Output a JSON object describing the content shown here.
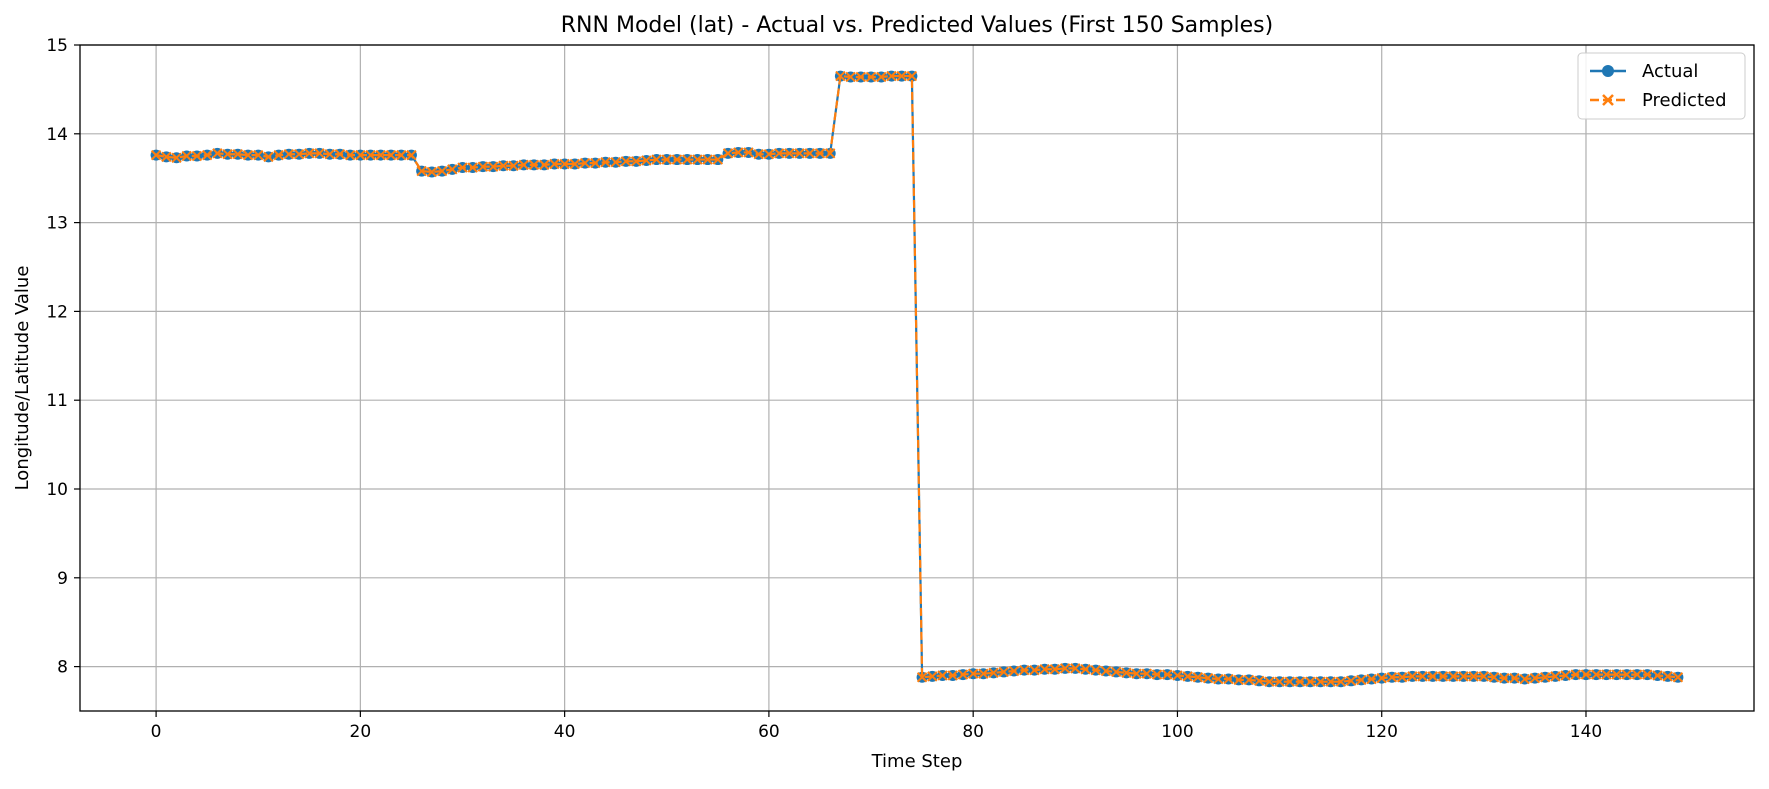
{
  "chart_data": {
    "type": "line",
    "title": "RNN Model (lat) - Actual vs. Predicted Values (First 150 Samples)",
    "xlabel": "Time Step",
    "ylabel": "Longitude/Latitude Value",
    "xlim": [
      -7.45,
      156.45
    ],
    "ylim": [
      7.5,
      15
    ],
    "xticks": [
      0,
      20,
      40,
      60,
      80,
      100,
      120,
      140
    ],
    "xtick_labels": [
      "0",
      "20",
      "40",
      "60",
      "80",
      "100",
      "120",
      "140"
    ],
    "yticks": [
      8,
      9,
      10,
      11,
      12,
      13,
      14,
      15
    ],
    "ytick_labels": [
      "8",
      "9",
      "10",
      "11",
      "12",
      "13",
      "14",
      "15"
    ],
    "grid": true,
    "legend_position": "top-right",
    "x": [
      0,
      1,
      2,
      3,
      4,
      5,
      6,
      7,
      8,
      9,
      10,
      11,
      12,
      13,
      14,
      15,
      16,
      17,
      18,
      19,
      20,
      21,
      22,
      23,
      24,
      25,
      26,
      27,
      28,
      29,
      30,
      31,
      32,
      33,
      34,
      35,
      36,
      37,
      38,
      39,
      40,
      41,
      42,
      43,
      44,
      45,
      46,
      47,
      48,
      49,
      50,
      51,
      52,
      53,
      54,
      55,
      56,
      57,
      58,
      59,
      60,
      61,
      62,
      63,
      64,
      65,
      66,
      67,
      68,
      69,
      70,
      71,
      72,
      73,
      74,
      75,
      76,
      77,
      78,
      79,
      80,
      81,
      82,
      83,
      84,
      85,
      86,
      87,
      88,
      89,
      90,
      91,
      92,
      93,
      94,
      95,
      96,
      97,
      98,
      99,
      100,
      101,
      102,
      103,
      104,
      105,
      106,
      107,
      108,
      109,
      110,
      111,
      112,
      113,
      114,
      115,
      116,
      117,
      118,
      119,
      120,
      121,
      122,
      123,
      124,
      125,
      126,
      127,
      128,
      129,
      130,
      131,
      132,
      133,
      134,
      135,
      136,
      137,
      138,
      139,
      140,
      141,
      142,
      143,
      144,
      145,
      146,
      147,
      148,
      149
    ],
    "series": [
      {
        "name": "Actual",
        "color": "#1f77b4",
        "marker": "circle",
        "linestyle": "solid",
        "values": [
          13.76,
          13.74,
          13.73,
          13.75,
          13.75,
          13.76,
          13.78,
          13.77,
          13.77,
          13.76,
          13.76,
          13.74,
          13.76,
          13.77,
          13.77,
          13.78,
          13.78,
          13.77,
          13.77,
          13.76,
          13.76,
          13.76,
          13.76,
          13.76,
          13.76,
          13.76,
          13.58,
          13.57,
          13.58,
          13.6,
          13.62,
          13.62,
          13.63,
          13.63,
          13.64,
          13.64,
          13.65,
          13.65,
          13.65,
          13.66,
          13.66,
          13.66,
          13.67,
          13.67,
          13.68,
          13.68,
          13.69,
          13.69,
          13.7,
          13.71,
          13.71,
          13.71,
          13.71,
          13.71,
          13.71,
          13.71,
          13.78,
          13.79,
          13.79,
          13.77,
          13.77,
          13.78,
          13.78,
          13.78,
          13.78,
          13.78,
          13.78,
          14.65,
          14.64,
          14.64,
          14.64,
          14.64,
          14.65,
          14.65,
          14.65,
          7.88,
          7.89,
          7.9,
          7.9,
          7.91,
          7.92,
          7.92,
          7.93,
          7.94,
          7.95,
          7.96,
          7.96,
          7.97,
          7.97,
          7.98,
          7.98,
          7.97,
          7.96,
          7.95,
          7.94,
          7.93,
          7.92,
          7.92,
          7.91,
          7.91,
          7.9,
          7.89,
          7.88,
          7.87,
          7.86,
          7.86,
          7.85,
          7.85,
          7.84,
          7.83,
          7.83,
          7.83,
          7.83,
          7.83,
          7.83,
          7.83,
          7.83,
          7.84,
          7.85,
          7.86,
          7.87,
          7.88,
          7.88,
          7.89,
          7.89,
          7.89,
          7.89,
          7.89,
          7.89,
          7.89,
          7.89,
          7.88,
          7.87,
          7.87,
          7.86,
          7.87,
          7.88,
          7.89,
          7.9,
          7.91,
          7.91,
          7.91,
          7.91,
          7.91,
          7.91,
          7.91,
          7.91,
          7.9,
          7.89,
          7.88
        ]
      },
      {
        "name": "Predicted",
        "color": "#ff7f0e",
        "marker": "x",
        "linestyle": "dashed",
        "values": [
          13.76,
          13.74,
          13.73,
          13.75,
          13.75,
          13.76,
          13.78,
          13.77,
          13.77,
          13.76,
          13.76,
          13.74,
          13.76,
          13.77,
          13.77,
          13.78,
          13.78,
          13.77,
          13.77,
          13.76,
          13.76,
          13.76,
          13.76,
          13.76,
          13.76,
          13.76,
          13.58,
          13.57,
          13.58,
          13.6,
          13.62,
          13.62,
          13.63,
          13.63,
          13.64,
          13.64,
          13.65,
          13.65,
          13.65,
          13.66,
          13.66,
          13.66,
          13.67,
          13.67,
          13.68,
          13.68,
          13.69,
          13.69,
          13.7,
          13.71,
          13.71,
          13.71,
          13.71,
          13.71,
          13.71,
          13.71,
          13.78,
          13.79,
          13.79,
          13.77,
          13.77,
          13.78,
          13.78,
          13.78,
          13.78,
          13.78,
          13.78,
          14.65,
          14.64,
          14.64,
          14.64,
          14.64,
          14.65,
          14.65,
          14.65,
          7.88,
          7.89,
          7.9,
          7.9,
          7.91,
          7.92,
          7.92,
          7.93,
          7.94,
          7.95,
          7.96,
          7.96,
          7.97,
          7.97,
          7.98,
          7.98,
          7.97,
          7.96,
          7.95,
          7.94,
          7.93,
          7.92,
          7.92,
          7.91,
          7.91,
          7.9,
          7.89,
          7.88,
          7.87,
          7.86,
          7.86,
          7.85,
          7.85,
          7.84,
          7.83,
          7.83,
          7.83,
          7.83,
          7.83,
          7.83,
          7.83,
          7.83,
          7.84,
          7.85,
          7.86,
          7.87,
          7.88,
          7.88,
          7.89,
          7.89,
          7.89,
          7.89,
          7.89,
          7.89,
          7.89,
          7.89,
          7.88,
          7.87,
          7.87,
          7.86,
          7.87,
          7.88,
          7.89,
          7.9,
          7.91,
          7.91,
          7.91,
          7.91,
          7.91,
          7.91,
          7.91,
          7.91,
          7.9,
          7.89,
          7.88
        ]
      }
    ]
  }
}
